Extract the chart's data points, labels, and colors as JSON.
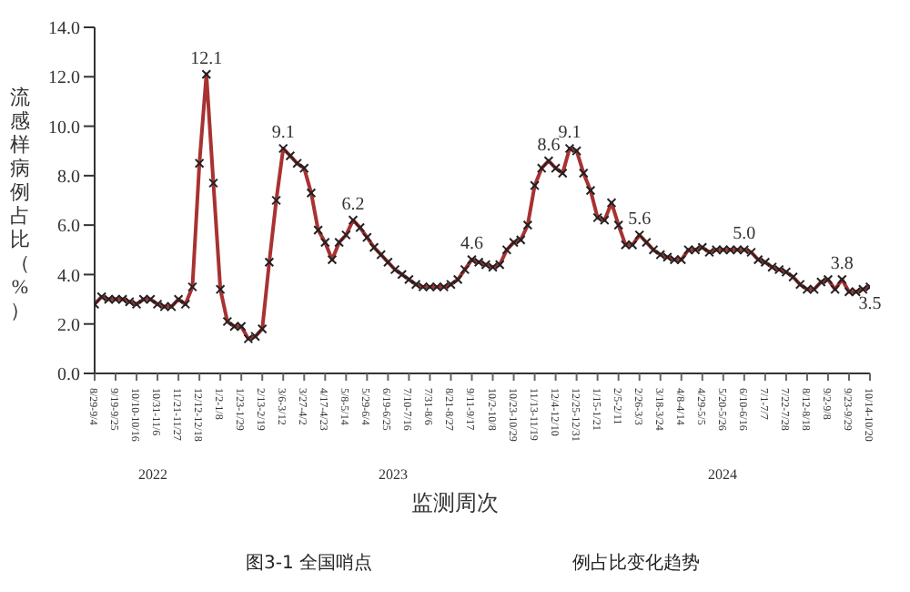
{
  "chart_data": {
    "type": "line",
    "xlabel": "监测周次",
    "ylabel": "流感样病例占比（%）",
    "categories": [
      "8/29-9/4",
      null,
      null,
      "9/19-9/25",
      null,
      null,
      "10/10-10/16",
      null,
      null,
      "10/31-11/6",
      null,
      null,
      "11/21-11/27",
      null,
      null,
      "12/12-12/18",
      null,
      null,
      "1/2-1/8",
      null,
      null,
      "1/23-1/29",
      null,
      null,
      "2/13-2/19",
      null,
      null,
      "3/6-3/12",
      null,
      null,
      "3/27-4/2",
      null,
      null,
      "4/17-4/23",
      null,
      null,
      "5/8-5/14",
      null,
      null,
      "5/29-6/4",
      null,
      null,
      "6/19-6/25",
      null,
      null,
      "7/10-7/16",
      null,
      null,
      "7/31-8/6",
      null,
      null,
      "8/21-8/27",
      null,
      null,
      "9/11-9/17",
      null,
      null,
      "10/2-10/8",
      null,
      null,
      "10/23-10/29",
      null,
      null,
      "11/13-11/19",
      null,
      null,
      "12/4-12/10",
      null,
      null,
      "12/25-12/31",
      null,
      null,
      "1/15-1/21",
      null,
      null,
      "2/5-2/11",
      null,
      null,
      "2/26-3/3",
      null,
      null,
      "3/18-3/24",
      null,
      null,
      "4/8-4/14",
      null,
      null,
      "4/29-5/5",
      null,
      null,
      "5/20-5/26",
      null,
      null,
      "6/10-6/16",
      null,
      null,
      "7/1-7/7",
      null,
      null,
      "7/22-7/28",
      null,
      null,
      "8/12-8/18",
      null,
      null,
      "9/2-9/8",
      null,
      null,
      "9/23-9/29",
      null,
      null,
      "10/14-10/20"
    ],
    "series": [
      {
        "color": "#a83232",
        "values": [
          2.8,
          3.1,
          3.0,
          3.0,
          3.0,
          2.9,
          2.8,
          3.0,
          3.0,
          2.8,
          2.7,
          2.7,
          3.0,
          2.8,
          3.5,
          8.5,
          12.1,
          7.7,
          3.4,
          2.1,
          1.9,
          1.9,
          1.4,
          1.5,
          1.8,
          4.5,
          7.0,
          9.1,
          8.8,
          8.5,
          8.3,
          7.3,
          5.8,
          5.3,
          4.6,
          5.3,
          5.6,
          6.2,
          5.9,
          5.5,
          5.1,
          4.8,
          4.5,
          4.2,
          4.0,
          3.8,
          3.6,
          3.5,
          3.5,
          3.5,
          3.5,
          3.6,
          3.8,
          4.2,
          4.6,
          4.5,
          4.4,
          4.3,
          4.4,
          5.0,
          5.3,
          5.4,
          6.0,
          7.6,
          8.3,
          8.6,
          8.3,
          8.1,
          9.1,
          9.0,
          8.1,
          7.4,
          6.3,
          6.2,
          6.9,
          6.0,
          5.2,
          5.2,
          5.6,
          5.3,
          5.0,
          4.8,
          4.7,
          4.6,
          4.6,
          5.0,
          5.0,
          5.1,
          4.9,
          5.0,
          5.0,
          5.0,
          5.0,
          5.0,
          4.9,
          4.6,
          4.5,
          4.3,
          4.2,
          4.1,
          3.9,
          3.6,
          3.4,
          3.4,
          3.7,
          3.8,
          3.4,
          3.8,
          3.3,
          3.3,
          3.4,
          3.5
        ],
        "value_labels": [
          null,
          null,
          null,
          null,
          null,
          null,
          null,
          null,
          null,
          null,
          null,
          null,
          null,
          null,
          null,
          null,
          "12.1",
          null,
          null,
          null,
          null,
          null,
          null,
          null,
          null,
          null,
          null,
          "9.1",
          null,
          null,
          null,
          null,
          null,
          null,
          null,
          null,
          null,
          "6.2",
          null,
          null,
          null,
          null,
          null,
          null,
          null,
          null,
          null,
          null,
          null,
          null,
          null,
          null,
          null,
          null,
          "4.6",
          null,
          null,
          null,
          null,
          null,
          null,
          null,
          null,
          null,
          null,
          "8.6",
          null,
          null,
          "9.1",
          null,
          null,
          null,
          null,
          null,
          null,
          null,
          null,
          null,
          "5.6",
          null,
          null,
          null,
          null,
          null,
          null,
          null,
          null,
          null,
          null,
          null,
          null,
          null,
          null,
          "5.0",
          null,
          null,
          null,
          null,
          null,
          null,
          null,
          null,
          null,
          null,
          null,
          null,
          null,
          "3.8",
          null,
          null,
          null,
          "3.5"
        ]
      }
    ],
    "ylim": [
      0,
      14
    ],
    "yticks": [
      {
        "value": 0,
        "label": "0.0"
      },
      {
        "value": 2,
        "label": "2.0"
      },
      {
        "value": 4,
        "label": "4.0"
      },
      {
        "value": 6,
        "label": "6.0"
      },
      {
        "value": 8,
        "label": "8.0"
      },
      {
        "value": 10,
        "label": "10.0"
      },
      {
        "value": 12,
        "label": "12.0"
      },
      {
        "value": 14,
        "label": "14.0"
      }
    ],
    "marker": "cross",
    "line_style": "solid",
    "annotations": [
      "2022",
      "2023",
      "2024",
      "图3-1 全国哨点",
      "例占比变化趋势"
    ]
  }
}
